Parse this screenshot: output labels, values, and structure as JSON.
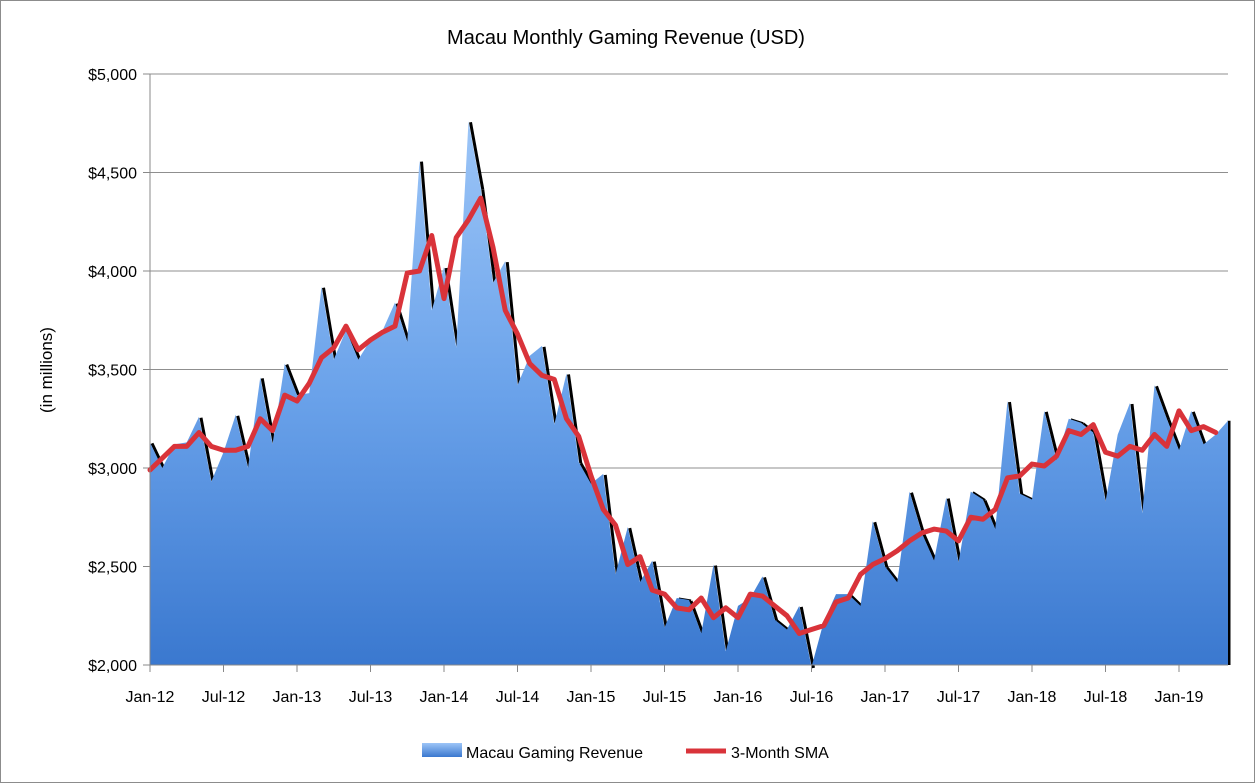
{
  "chart_data": {
    "type": "area",
    "title": "Macau Monthly Gaming Revenue (USD)",
    "xlabel": "",
    "ylabel": "(in millions)",
    "ylim": [
      2000,
      5000
    ],
    "y_ticks": [
      2000,
      2500,
      3000,
      3500,
      4000,
      4500,
      5000
    ],
    "y_tick_labels": [
      "$2,000",
      "$2,500",
      "$3,000",
      "$3,500",
      "$4,000",
      "$4,500",
      "$5,000"
    ],
    "x_tick_labels": [
      "Jan-12",
      "Jul-12",
      "Jan-13",
      "Jul-13",
      "Jan-14",
      "Jul-14",
      "Jan-15",
      "Jul-15",
      "Jan-16",
      "Jul-16",
      "Jan-17",
      "Jul-17",
      "Jan-18",
      "Jul-18",
      "Jan-19"
    ],
    "grid": "horizontal",
    "legend": "bottom",
    "x_start": "Jan-12",
    "x_end": "Mar-19",
    "series": [
      {
        "name": "Macau Gaming Revenue",
        "kind": "area",
        "color": "#4a86d8",
        "values": [
          3130,
          3000,
          3120,
          3130,
          3260,
          2930,
          3080,
          3270,
          3000,
          3460,
          3120,
          3530,
          3370,
          3380,
          3920,
          3550,
          3700,
          3550,
          3650,
          3700,
          3840,
          3640,
          4560,
          3800,
          4020,
          3610,
          4760,
          4420,
          3940,
          4050,
          3420,
          3570,
          3620,
          3220,
          3480,
          3030,
          2920,
          2970,
          2460,
          2700,
          2420,
          2530,
          2190,
          2340,
          2330,
          2160,
          2510,
          2070,
          2300,
          2340,
          2450,
          2230,
          2180,
          2300,
          1990,
          2220,
          2360,
          2360,
          2300,
          2730,
          2500,
          2420,
          2880,
          2670,
          2530,
          2850,
          2520,
          2880,
          2840,
          2690,
          3340,
          2870,
          2840,
          3290,
          3040,
          3250,
          3230,
          3180,
          2830,
          3170,
          3330,
          2770,
          3420,
          3250,
          3090,
          3290,
          3120,
          3170,
          3240
        ]
      },
      {
        "name": "3-Month SMA",
        "kind": "line",
        "color": "#d9333a",
        "values": [
          2990,
          3050,
          3110,
          3110,
          3180,
          3110,
          3090,
          3090,
          3110,
          3250,
          3190,
          3370,
          3340,
          3430,
          3560,
          3610,
          3720,
          3600,
          3650,
          3690,
          3720,
          3990,
          4000,
          4180,
          3860,
          4170,
          4260,
          4370,
          4120,
          3800,
          3680,
          3530,
          3470,
          3450,
          3250,
          3160,
          2960,
          2790,
          2710,
          2510,
          2550,
          2380,
          2360,
          2290,
          2280,
          2340,
          2240,
          2290,
          2240,
          2360,
          2350,
          2300,
          2250,
          2160,
          2180,
          2200,
          2320,
          2340,
          2460,
          2510,
          2540,
          2580,
          2630,
          2670,
          2690,
          2680,
          2630,
          2750,
          2740,
          2790,
          2950,
          2960,
          3020,
          3010,
          3060,
          3190,
          3170,
          3220,
          3080,
          3060,
          3110,
          3090,
          3170,
          3110,
          3290,
          3190,
          3210,
          3180
        ]
      }
    ]
  }
}
